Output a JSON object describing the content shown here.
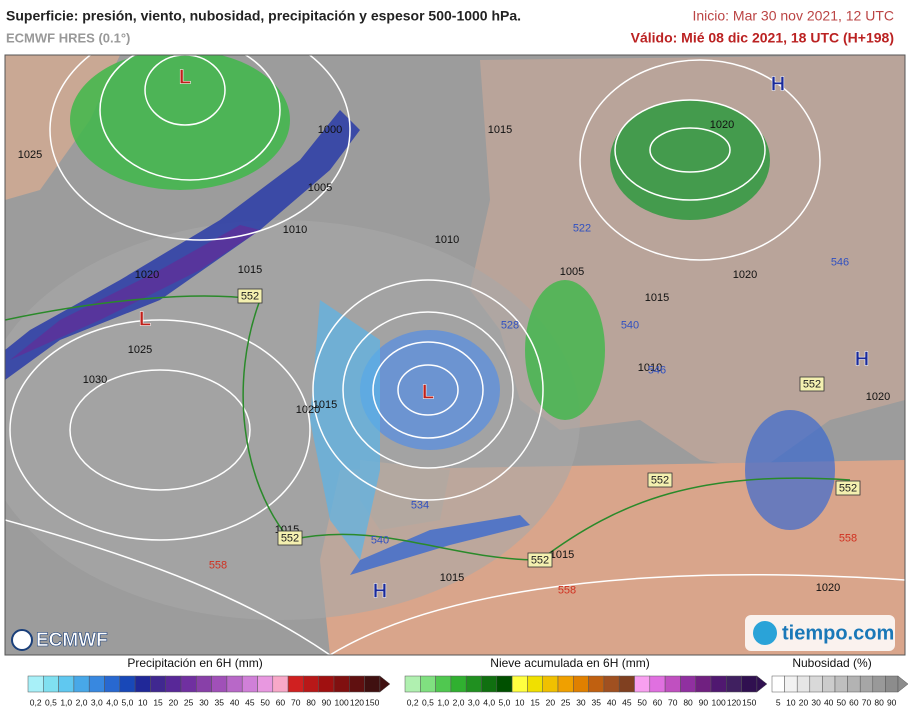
{
  "header": {
    "title": "Superficie: presión, viento, nubosidad, precipitación y espesor 500-1000 hPa.",
    "model": "ECMWF HRES (0.1°)",
    "init": "Inicio: Mar 30 nov 2021, 12 UTC",
    "valid": "Válido: Mié 08 dic 2021, 18 UTC (H+198)"
  },
  "map": {
    "pressure_centers": [
      "L",
      "L",
      "L",
      "H",
      "H",
      "H"
    ],
    "isobar_labels": [
      "1025",
      "1015",
      "1020",
      "1005",
      "1010",
      "1000",
      "1010",
      "1015",
      "1020",
      "1025",
      "1030",
      "1005",
      "1015",
      "1020",
      "1015",
      "1020",
      "1010",
      "1020",
      "1015",
      "1015",
      "1015",
      "1020"
    ],
    "thickness_labels": [
      "552",
      "552",
      "552",
      "552",
      "552",
      "552",
      "528",
      "522",
      "540",
      "546",
      "546",
      "534",
      "540",
      "558",
      "558",
      "558"
    ]
  },
  "logos": {
    "left": "ECMWF",
    "right": "tiempo.com"
  },
  "legends": [
    {
      "title": "Precipitación en 6H (mm)",
      "labels": [
        "0,2",
        "0,5",
        "1,0",
        "2,0",
        "3,0",
        "4,0",
        "5,0",
        "10",
        "15",
        "20",
        "25",
        "30",
        "35",
        "40",
        "45",
        "50",
        "60",
        "70",
        "80",
        "90",
        "100",
        "120",
        "150"
      ]
    },
    {
      "title": "Nieve acumulada en 6H (mm)",
      "labels": [
        "0,2",
        "0,5",
        "1,0",
        "2,0",
        "3,0",
        "4,0",
        "5,0",
        "10",
        "15",
        "20",
        "25",
        "30",
        "35",
        "40",
        "45",
        "50",
        "60",
        "70",
        "80",
        "90",
        "100",
        "120",
        "150"
      ]
    },
    {
      "title": "Nubosidad (%)",
      "labels": [
        "5",
        "10",
        "20",
        "30",
        "40",
        "50",
        "60",
        "70",
        "80",
        "90"
      ]
    }
  ]
}
